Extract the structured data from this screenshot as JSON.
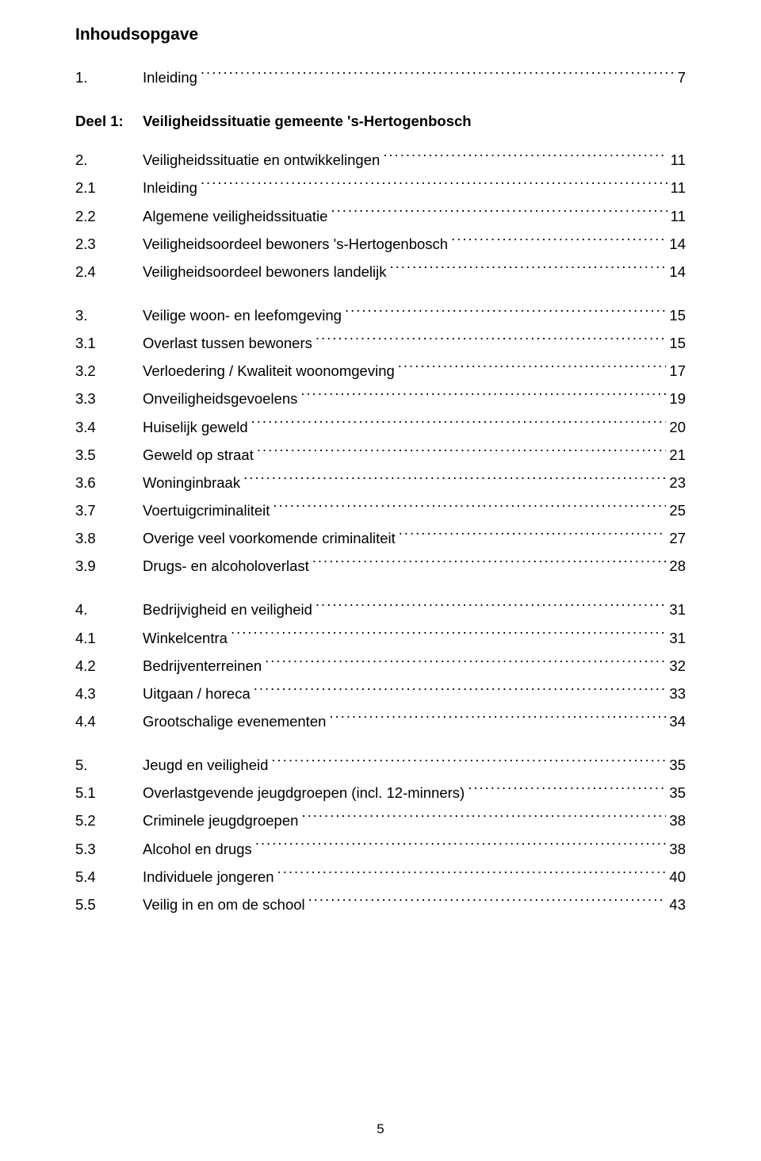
{
  "title": "Inhoudsopgave",
  "part_label": "Deel 1:",
  "part_title": "Veiligheidssituatie gemeente 's-Hertogenbosch",
  "page_number": "5",
  "entries": [
    {
      "num": "1.",
      "label": "Inleiding",
      "page": "7",
      "bold": false,
      "gap_after": "med"
    },
    {
      "num": "2.",
      "label": "Veiligheidssituatie en ontwikkelingen",
      "page": "11",
      "bold": false
    },
    {
      "num": "2.1",
      "label": "Inleiding",
      "page": "11",
      "bold": false
    },
    {
      "num": "2.2",
      "label": "Algemene veiligheidssituatie",
      "page": "11",
      "bold": false
    },
    {
      "num": "2.3",
      "label": "Veiligheidsoordeel bewoners 's-Hertogenbosch",
      "page": "14",
      "bold": false
    },
    {
      "num": "2.4",
      "label": "Veiligheidsoordeel bewoners landelijk",
      "page": "14",
      "bold": false,
      "gap_after": "med"
    },
    {
      "num": "3.",
      "label": "Veilige woon- en leefomgeving",
      "page": "15",
      "bold": false
    },
    {
      "num": "3.1",
      "label": "Overlast tussen bewoners",
      "page": "15",
      "bold": false
    },
    {
      "num": "3.2",
      "label": "Verloedering / Kwaliteit woonomgeving",
      "page": "17",
      "bold": false
    },
    {
      "num": "3.3",
      "label": "Onveiligheidsgevoelens",
      "page": "19",
      "bold": false
    },
    {
      "num": "3.4",
      "label": "Huiselijk geweld",
      "page": "20",
      "bold": false
    },
    {
      "num": "3.5",
      "label": "Geweld op straat",
      "page": "21",
      "bold": false
    },
    {
      "num": "3.6",
      "label": "Woninginbraak",
      "page": "23",
      "bold": false
    },
    {
      "num": "3.7",
      "label": "Voertuigcriminaliteit",
      "page": "25",
      "bold": false
    },
    {
      "num": "3.8",
      "label": "Overige veel voorkomende criminaliteit",
      "page": "27",
      "bold": false
    },
    {
      "num": "3.9",
      "label": "Drugs- en alcoholoverlast",
      "page": "28",
      "bold": false,
      "gap_after": "med"
    },
    {
      "num": "4.",
      "label": "Bedrijvigheid en veiligheid",
      "page": "31",
      "bold": false
    },
    {
      "num": "4.1",
      "label": "Winkelcentra",
      "page": "31",
      "bold": false
    },
    {
      "num": "4.2",
      "label": "Bedrijventerreinen",
      "page": "32",
      "bold": false
    },
    {
      "num": "4.3",
      "label": "Uitgaan / horeca",
      "page": "33",
      "bold": false
    },
    {
      "num": "4.4",
      "label": "Grootschalige evenementen",
      "page": "34",
      "bold": false,
      "gap_after": "med"
    },
    {
      "num": "5.",
      "label": "Jeugd en veiligheid",
      "page": "35",
      "bold": false
    },
    {
      "num": "5.1",
      "label": "Overlastgevende jeugdgroepen (incl. 12-minners)",
      "page": "35",
      "bold": false
    },
    {
      "num": "5.2",
      "label": "Criminele jeugdgroepen",
      "page": "38",
      "bold": false
    },
    {
      "num": "5.3",
      "label": "Alcohol en drugs",
      "page": "38",
      "bold": false
    },
    {
      "num": "5.4",
      "label": "Individuele jongeren",
      "page": "40",
      "bold": false
    },
    {
      "num": "5.5",
      "label": "Veilig in en om de school",
      "page": "43",
      "bold": false
    }
  ]
}
